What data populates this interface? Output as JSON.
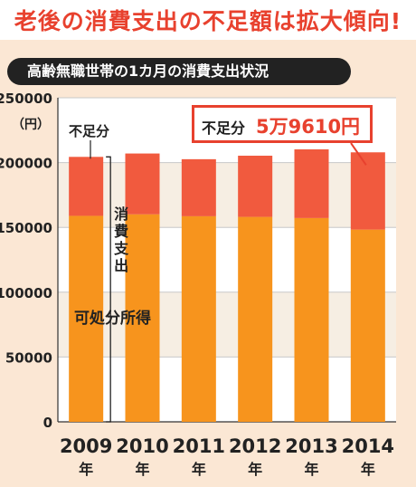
{
  "headline": "老後の消費支出の不足額は拡大傾向!",
  "subtitle": "高齢無職世帯の1カ月の消費支出状況",
  "callout": {
    "label": "不足分",
    "value": "5万9610円"
  },
  "legend_labels": {
    "shortfall": "不足分",
    "consumption": "消費支出",
    "income": "可処分所得"
  },
  "colors": {
    "title_red": "#e8412e",
    "shortfall": "#f15a3e",
    "income": "#f7941d",
    "band": "#f6eee3",
    "grid": "#c8c8c8"
  },
  "chart_data": {
    "type": "bar",
    "stacked": true,
    "categories": [
      "2009",
      "2010",
      "2011",
      "2012",
      "2013",
      "2014"
    ],
    "category_suffix": "年",
    "y_unit": "（円）",
    "ylim": [
      0,
      250000
    ],
    "yticks": [
      0,
      50000,
      100000,
      150000,
      200000,
      250000
    ],
    "series": [
      {
        "name": "可処分所得",
        "values": [
          158900,
          160100,
          158600,
          158100,
          157200,
          148300
        ]
      },
      {
        "name": "不足分",
        "values": [
          45500,
          46900,
          44000,
          47200,
          53000,
          59610
        ]
      }
    ]
  }
}
